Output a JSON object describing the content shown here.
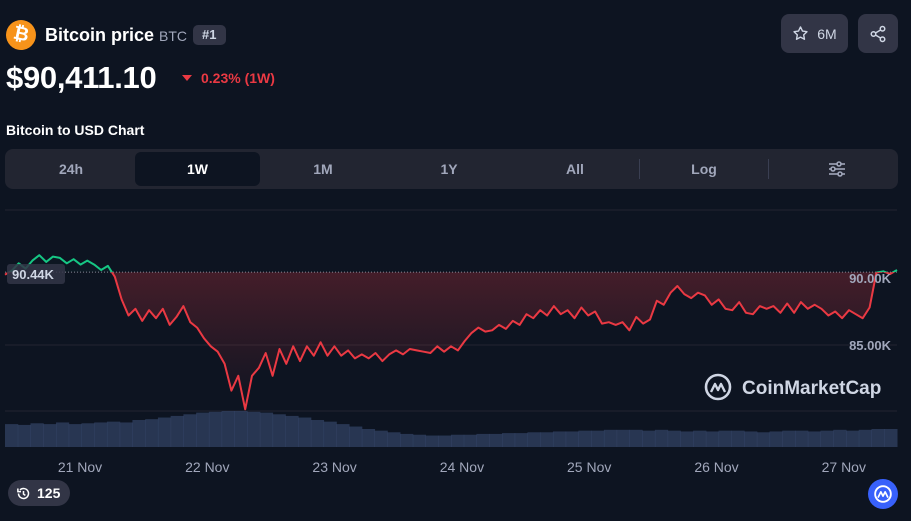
{
  "coin": {
    "name": "Bitcoin price",
    "symbol": "BTC",
    "rank": "#1",
    "logo_icon": "bitcoin-icon",
    "logo_glyph": "₿",
    "brand_color": "#f7931a"
  },
  "actions": {
    "watchlist_count": "6M",
    "watchlist_icon": "star-icon",
    "share_icon": "share-icon"
  },
  "price": {
    "value": "$90,411.10",
    "change": "0.23% (1W)",
    "direction": "down",
    "down_color": "#ea3943",
    "up_color": "#16c784"
  },
  "chart_title": "Bitcoin to USD Chart",
  "tabs": {
    "d24": "24h",
    "w1": "1W",
    "m1": "1M",
    "y1": "1Y",
    "all": "All",
    "log": "Log",
    "active": "1W",
    "settings_icon": "sliders-icon"
  },
  "chart_data": {
    "type": "line",
    "title": "",
    "xlabel": "",
    "ylabel": "",
    "x_ticks": [
      "21 Nov",
      "22 Nov",
      "23 Nov",
      "24 Nov",
      "25 Nov",
      "26 Nov",
      "27 Nov"
    ],
    "y_ticks": [
      "90.00K",
      "85.00K"
    ],
    "ylim": [
      77500,
      93000
    ],
    "reference_value": 90440,
    "reference_label": "90.44K",
    "watermark": "CoinMarketCap",
    "series": [
      {
        "values": [
          90250,
          90550,
          91100,
          90700,
          91300,
          91700,
          91200,
          91600,
          91500,
          91100,
          91400,
          91000,
          91300,
          91000,
          90600,
          90900,
          90100,
          88400,
          87200,
          87700,
          86800,
          87600,
          87000,
          87700,
          86500,
          87100,
          87900,
          86700,
          86300,
          85500,
          84900,
          84500,
          83600,
          81600,
          82700,
          80200,
          82700,
          83300,
          84400,
          82700,
          84700,
          83600,
          84900,
          83800,
          84900,
          84200,
          85200,
          84200,
          84900,
          84200,
          84600,
          84000,
          84300,
          84000,
          84400,
          83800,
          84300,
          84600,
          84300,
          84700,
          84600,
          84500,
          84400,
          84900,
          84500,
          84900,
          84600,
          85300,
          85900,
          86300,
          86000,
          86100,
          86500,
          86200,
          86800,
          86500,
          87300,
          87000,
          87600,
          87200,
          87900,
          87300,
          87600,
          87000,
          87800,
          87200,
          87500,
          86600,
          86700,
          86500,
          86700,
          86100,
          87100,
          86600,
          86900,
          88300,
          88000,
          88900,
          89400,
          88800,
          88500,
          88900,
          88700,
          88000,
          88400,
          87700,
          87600,
          88200,
          87400,
          87300,
          87900,
          87700,
          87900,
          87400,
          88100,
          87400,
          88200,
          87700,
          88000,
          87700,
          87200,
          87500,
          87000,
          87600,
          87300,
          87000,
          87800,
          90400,
          90500,
          90300,
          90600
        ]
      }
    ],
    "volume_values": [
      28,
      27,
      29,
      28,
      30,
      28,
      29,
      30,
      31,
      30,
      33,
      34,
      36,
      38,
      40,
      42,
      43,
      44,
      44,
      43,
      42,
      40,
      38,
      36,
      33,
      31,
      28,
      25,
      22,
      20,
      18,
      16,
      15,
      14,
      14,
      15,
      15,
      16,
      16,
      17,
      17,
      18,
      18,
      19,
      19,
      20,
      20,
      21,
      21,
      21,
      20,
      21,
      20,
      19,
      20,
      19,
      20,
      20,
      19,
      18,
      19,
      20,
      20,
      19,
      20,
      21,
      20,
      21,
      22,
      22
    ]
  },
  "history": {
    "count": "125",
    "icon": "history-icon"
  },
  "fab_icon": "coinmarketcap-icon"
}
